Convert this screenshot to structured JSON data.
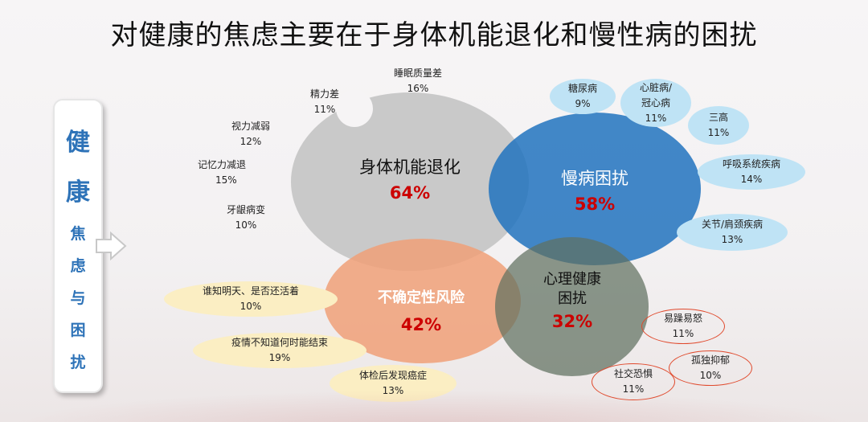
{
  "title": "对健康的焦虑主要在于身体机能退化和慢性病的困扰",
  "side_label": {
    "big": [
      "健",
      "康"
    ],
    "small": [
      "焦",
      "虑",
      "与",
      "困",
      "扰"
    ]
  },
  "circles": {
    "physical": {
      "name": "身体机能退化",
      "pct": "64%"
    },
    "chronic": {
      "name": "慢病困扰",
      "pct": "58%"
    },
    "uncertain": {
      "name": "不确定性风险",
      "pct": "42%"
    },
    "mental": {
      "name_line1": "心理健康",
      "name_line2": "困扰",
      "pct": "32%"
    }
  },
  "physical_items": [
    {
      "label": "睡眠质量差",
      "pct": "16%"
    },
    {
      "label": "精力差",
      "pct": "11%"
    },
    {
      "label": "视力减弱",
      "pct": "12%"
    },
    {
      "label": "记忆力减退",
      "pct": "15%"
    },
    {
      "label": "牙龈病变",
      "pct": "10%"
    }
  ],
  "chronic_items": [
    {
      "label": "糖尿病",
      "pct": "9%"
    },
    {
      "label": "心脏病/",
      "label2": "冠心病",
      "pct": "11%"
    },
    {
      "label": "三高",
      "pct": "11%"
    },
    {
      "label": "呼吸系统疾病",
      "pct": "14%"
    },
    {
      "label": "关节/肩颈疾病",
      "pct": "13%"
    }
  ],
  "uncertain_items": [
    {
      "label": "谁知明天、是否还活着",
      "pct": "10%"
    },
    {
      "label": "疫情不知道何时能结束",
      "pct": "19%"
    },
    {
      "label": "体检后发现癌症",
      "pct": "13%"
    }
  ],
  "mental_items": [
    {
      "label": "易躁易怒",
      "pct": "11%"
    },
    {
      "label": "孤独抑郁",
      "pct": "10%"
    },
    {
      "label": "社交恐惧",
      "pct": "11%"
    }
  ],
  "colors": {
    "gray_circle": "#c4c4c4",
    "blue_circle": "#2173be",
    "orange_circle": "#f0a078",
    "green_circle": "#607060",
    "pct_red": "#cc0000",
    "side_blue": "#2e73b8",
    "bubble_blue": "#bfe3f5",
    "bubble_yellow": "#fbeec3",
    "ring_red": "#e0492c"
  }
}
